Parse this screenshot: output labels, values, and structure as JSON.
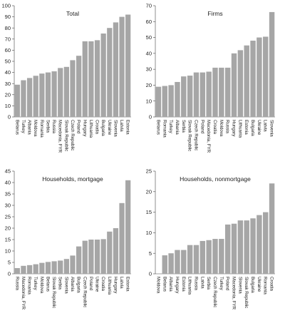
{
  "chart_data": [
    {
      "type": "bar",
      "title": "Total",
      "ylim": [
        0,
        100
      ],
      "yticks": [
        0,
        10,
        20,
        30,
        40,
        50,
        60,
        70,
        80,
        90,
        100
      ],
      "categories": [
        "Belarus",
        "Turkey",
        "Albania",
        "Moldova",
        "Romania",
        "Serbia",
        "Russia",
        "Macedonia, FYR",
        "Slovak Republic",
        "Czech Republic",
        "Poland",
        "Hungary",
        "Lithuania",
        "Croatia",
        "Bulgaria",
        "Ukraine",
        "Slovenia",
        "Latvia",
        "Estonia"
      ],
      "values": [
        29,
        33,
        35,
        37,
        39,
        40,
        41,
        44,
        45,
        51,
        55,
        68,
        68,
        69,
        75,
        80,
        85,
        90,
        92
      ],
      "color": "#a6a6a6"
    },
    {
      "type": "bar",
      "title": "Firms",
      "ylim": [
        0,
        70
      ],
      "yticks": [
        0,
        10,
        20,
        30,
        40,
        50,
        60,
        70
      ],
      "categories": [
        "Belarus",
        "Romania",
        "Turkey",
        "Albania",
        "Serbia",
        "Slovak Republic",
        "Czech Republic",
        "Poland",
        "Macedonia, FYR",
        "Croatia",
        "Moldova",
        "Russia",
        "Hungary",
        "Lithuania",
        "Estonia",
        "Bulgaria",
        "Ukraine",
        "Latvia",
        "Slovenia"
      ],
      "values": [
        19,
        19.5,
        20,
        22,
        25.5,
        26,
        28,
        28,
        28.5,
        31,
        31,
        31,
        40,
        42,
        45,
        48,
        50,
        50.5,
        66
      ],
      "color": "#a6a6a6"
    },
    {
      "type": "bar",
      "title": "Households, mortgage",
      "ylim": [
        0,
        45
      ],
      "yticks": [
        0,
        5,
        10,
        15,
        20,
        25,
        30,
        35,
        40,
        45
      ],
      "categories": [
        "Russia",
        "Macedonia, FYR",
        "Romania",
        "Turkey",
        "Moldova",
        "Belarus",
        "Slovak Republic",
        "Serbia",
        "Slovenia",
        "Albania",
        "Bulgaria",
        "Czech Republic",
        "Poland",
        "Ukraine",
        "Croatia",
        "Lithuania",
        "Hungary",
        "Latvia",
        "Estonia"
      ],
      "values": [
        2.5,
        3.5,
        3.8,
        4.2,
        4.8,
        5.2,
        5.5,
        5.8,
        6.5,
        8,
        12,
        14.5,
        15,
        15,
        15.2,
        18.5,
        20,
        31,
        41
      ],
      "color": "#a6a6a6"
    },
    {
      "type": "bar",
      "title": "Households, nonmortgage",
      "ylim": [
        0,
        25
      ],
      "yticks": [
        0,
        5,
        10,
        15,
        20,
        25
      ],
      "categories": [
        "Moldova",
        "Belarus",
        "Albania",
        "Hungary",
        "Estonia",
        "Lithuania",
        "Russia",
        "Latvia",
        "Serbia",
        "Czech Republic",
        "Turkey",
        "Poland",
        "Macedonia, FYR",
        "Slovenia",
        "Slovak Republic",
        "Bulgaria",
        "Ukraine",
        "Romania",
        "Croatia"
      ],
      "values": [
        0,
        4.5,
        5,
        5.8,
        5.8,
        7,
        7,
        8,
        8.2,
        8.5,
        8.5,
        12,
        12.2,
        13,
        13,
        13.5,
        14.3,
        15,
        22
      ],
      "color": "#a6a6a6"
    }
  ]
}
